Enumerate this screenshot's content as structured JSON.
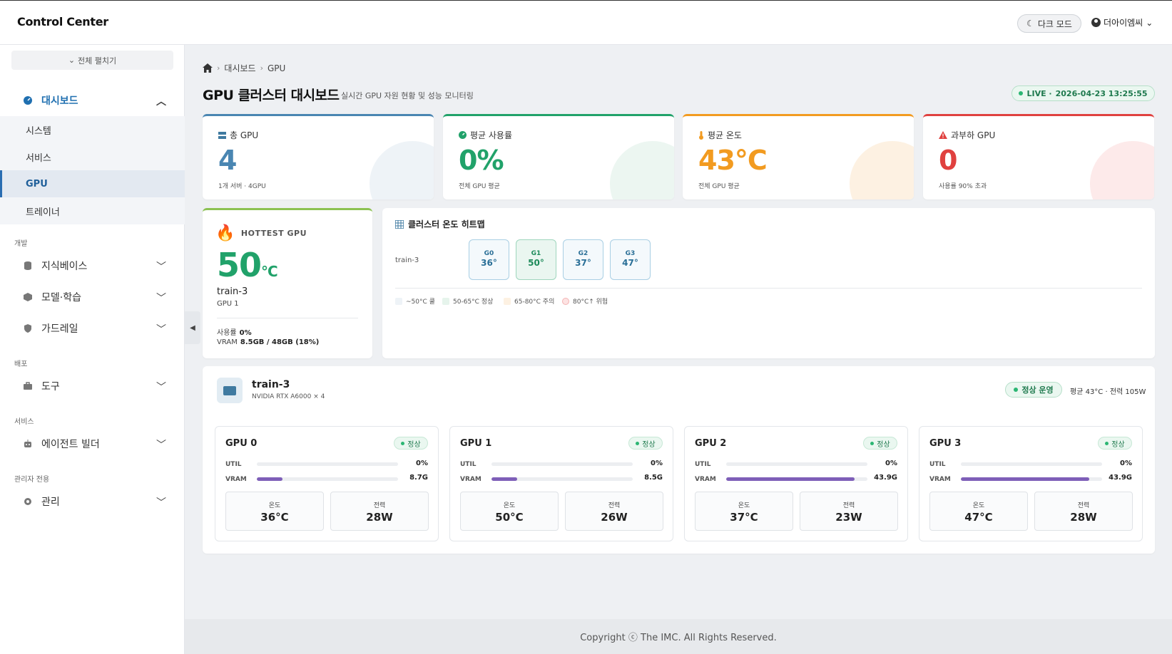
{
  "header": {
    "app_title": "Control Center",
    "dark_mode_label": "다크 모드",
    "user_name": "더아이엠씨"
  },
  "sidebar": {
    "expand_all": "전체 펼치기",
    "dashboard": {
      "label": "대시보드",
      "items": [
        "시스템",
        "서비스",
        "GPU",
        "트레이너"
      ],
      "active_item": "GPU"
    },
    "sections": [
      {
        "label": "개발",
        "groups": [
          "지식베이스",
          "모델·학습",
          "가드레일"
        ]
      },
      {
        "label": "배포",
        "groups": [
          "도구"
        ]
      },
      {
        "label": "서비스",
        "groups": [
          "에이전트 빌더"
        ]
      },
      {
        "label": "관리자 전용",
        "groups": [
          "관리"
        ]
      }
    ]
  },
  "breadcrumb": {
    "level1": "대시보드",
    "level2": "GPU"
  },
  "page": {
    "title": "GPU 클러스터 대시보드",
    "subtitle": "실시간 GPU 자원 현황 및 성능 모니터링",
    "live_label": "LIVE ·",
    "live_time": "2026-04-23 13:25:55"
  },
  "stats": [
    {
      "label": "총 GPU",
      "value": "4",
      "sub": "1개 서버 · 4GPU",
      "color": "#4a86b2"
    },
    {
      "label": "평균 사용률",
      "value": "0%",
      "sub": "전체 GPU 평균",
      "color": "#21a26a"
    },
    {
      "label": "평균 온도",
      "value": "43°C",
      "sub": "전체 GPU 평균",
      "color": "#f29b20"
    },
    {
      "label": "과부하 GPU",
      "value": "0",
      "sub": "사용률 90% 초과",
      "color": "#e0413f"
    }
  ],
  "hottest": {
    "title": "HOTTEST GPU",
    "value": "50",
    "unit": "°C",
    "host": "train-3",
    "gpu": "GPU 1",
    "util_label": "사용률",
    "util_value": "0%",
    "vram_label": "VRAM",
    "vram_value": "8.5GB / 48GB (18%)"
  },
  "heatmap": {
    "title": "클러스터 온도 히트맵",
    "row_label": "train-3",
    "cells": [
      {
        "label": "G0",
        "value": "36°"
      },
      {
        "label": "G1",
        "value": "50°"
      },
      {
        "label": "G2",
        "value": "37°"
      },
      {
        "label": "G3",
        "value": "47°"
      }
    ],
    "legend": [
      "~50°C 쿨",
      "50-65°C 정상",
      "65-80°C 주의",
      "80°C↑ 위험"
    ]
  },
  "host": {
    "name": "train-3",
    "model": "NVIDIA RTX A6000 × 4",
    "status": "정상 운영",
    "stats": "평균 43°C · 전력 105W",
    "gpus": [
      {
        "name": "GPU 0",
        "status": "정상",
        "util_label": "UTIL",
        "util": "0%",
        "util_fraction": 0,
        "vram_label": "VRAM",
        "vram": "8.7G",
        "vram_fraction": 0.18,
        "temp_label": "온도",
        "temp": "36°C",
        "power_label": "전력",
        "power": "28W"
      },
      {
        "name": "GPU 1",
        "status": "정상",
        "util_label": "UTIL",
        "util": "0%",
        "util_fraction": 0,
        "vram_label": "VRAM",
        "vram": "8.5G",
        "vram_fraction": 0.18,
        "temp_label": "온도",
        "temp": "50°C",
        "power_label": "전력",
        "power": "26W"
      },
      {
        "name": "GPU 2",
        "status": "정상",
        "util_label": "UTIL",
        "util": "0%",
        "util_fraction": 0,
        "vram_label": "VRAM",
        "vram": "43.9G",
        "vram_fraction": 0.91,
        "temp_label": "온도",
        "temp": "37°C",
        "power_label": "전력",
        "power": "23W"
      },
      {
        "name": "GPU 3",
        "status": "정상",
        "util_label": "UTIL",
        "util": "0%",
        "util_fraction": 0,
        "vram_label": "VRAM",
        "vram": "43.9G",
        "vram_fraction": 0.91,
        "temp_label": "온도",
        "temp": "47°C",
        "power_label": "전력",
        "power": "28W"
      }
    ]
  },
  "footer": {
    "copyright": "Copyright ⓒ The IMC. All Rights Reserved."
  }
}
